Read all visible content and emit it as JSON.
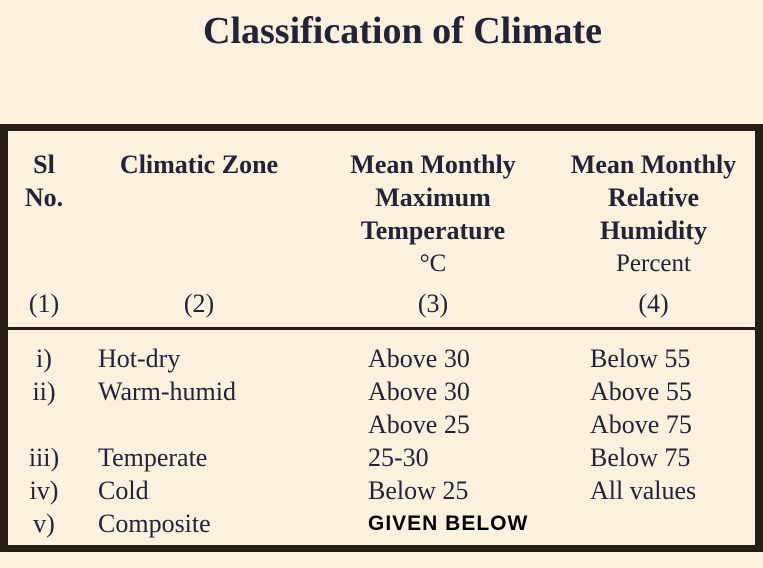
{
  "title": "Classification of Climate",
  "colors": {
    "background": "#fcf0de",
    "ink": "#232338",
    "rule": "#261d13",
    "annotation": "#000000"
  },
  "table": {
    "columns": [
      {
        "id": "(1)",
        "header_lines": [
          "Sl",
          "No."
        ],
        "unit": ""
      },
      {
        "id": "(2)",
        "header_lines": [
          "Climatic Zone"
        ],
        "unit": ""
      },
      {
        "id": "(3)",
        "header_lines": [
          "Mean Monthly",
          "Maximum",
          "Temperature"
        ],
        "unit": "°C"
      },
      {
        "id": "(4)",
        "header_lines": [
          "Mean Monthly",
          "Relative",
          "Humidity"
        ],
        "unit": "Percent"
      }
    ],
    "rows": [
      {
        "sl": "i)",
        "zone": "Hot-dry",
        "temp": "Above 30",
        "humidity": "Below 55"
      },
      {
        "sl": "ii)",
        "zone": "Warm-humid",
        "temp": "Above 30",
        "humidity": "Above 55"
      },
      {
        "sl": "",
        "zone": "",
        "temp": "Above 25",
        "humidity": "Above 75"
      },
      {
        "sl": "iii)",
        "zone": "Temperate",
        "temp": "25-30",
        "humidity": "Below 75"
      },
      {
        "sl": "iv)",
        "zone": "Cold",
        "temp": "Below 25",
        "humidity": "All values"
      },
      {
        "sl": "v)",
        "zone": "Composite",
        "temp": "GIVEN BELOW",
        "humidity": ""
      }
    ]
  }
}
